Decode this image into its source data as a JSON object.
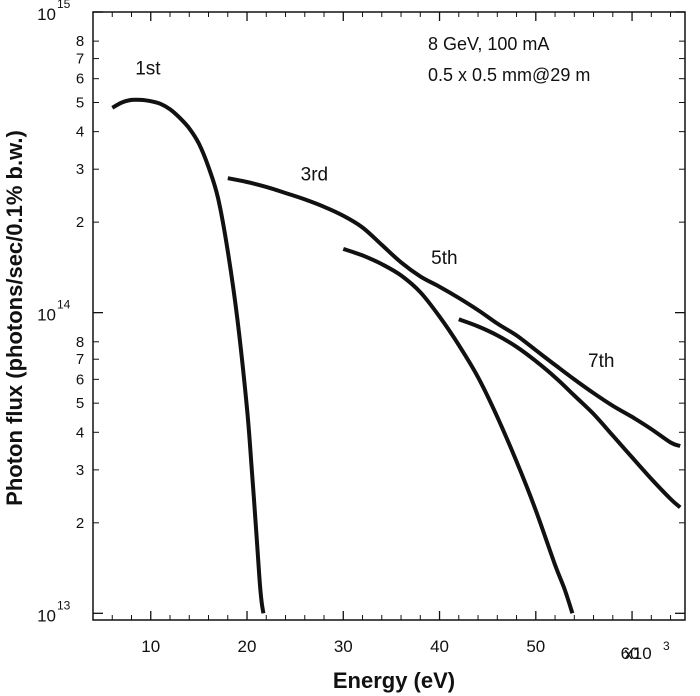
{
  "chart_data": {
    "type": "line",
    "xlabel": "Energy (eV)",
    "ylabel": "Photon flux (photons/sec/0.1% b.w.)",
    "x_multiplier_label": "x10",
    "x_multiplier_exp": "3",
    "xlim": [
      4000,
      65500
    ],
    "ylim": [
      9500000000000.0,
      1000000000000000.0
    ],
    "yscale": "log",
    "x_ticks": [
      10000,
      20000,
      30000,
      40000,
      50000,
      60000
    ],
    "x_tick_labels": [
      "10",
      "20",
      "30",
      "40",
      "50",
      "60"
    ],
    "y_major_ticks": [
      {
        "value": 10000000000000.0,
        "base": "10",
        "exp": "13"
      },
      {
        "value": 100000000000000.0,
        "base": "10",
        "exp": "14"
      },
      {
        "value": 1000000000000000.0,
        "base": "10",
        "exp": "15"
      }
    ],
    "y_minor_ticks": [
      {
        "value": 20000000000000.0,
        "label": "2"
      },
      {
        "value": 30000000000000.0,
        "label": "3"
      },
      {
        "value": 40000000000000.0,
        "label": "4"
      },
      {
        "value": 50000000000000.0,
        "label": "5"
      },
      {
        "value": 60000000000000.0,
        "label": "6"
      },
      {
        "value": 70000000000000.0,
        "label": "7"
      },
      {
        "value": 80000000000000.0,
        "label": "8"
      },
      {
        "value": 200000000000000.0,
        "label": "2"
      },
      {
        "value": 300000000000000.0,
        "label": "3"
      },
      {
        "value": 400000000000000.0,
        "label": "4"
      },
      {
        "value": 500000000000000.0,
        "label": "5"
      },
      {
        "value": 600000000000000.0,
        "label": "6"
      },
      {
        "value": 700000000000000.0,
        "label": "7"
      },
      {
        "value": 800000000000000.0,
        "label": "8"
      }
    ],
    "annotations": [
      "8 GeV, 100 mA",
      "0.5 x 0.5 mm@29 m"
    ],
    "series": [
      {
        "name": "1st",
        "label_at": [
          9700,
          620000000000000.0
        ],
        "x": [
          6000,
          7000,
          8000,
          9000,
          10000,
          11000,
          12000,
          13000,
          14000,
          15000,
          16000,
          17000,
          18000,
          19000,
          20000,
          20500,
          21000,
          21300,
          21500,
          21700
        ],
        "y": [
          480000000000000.0,
          500000000000000.0,
          510000000000000.0,
          510000000000000.0,
          505000000000000.0,
          495000000000000.0,
          475000000000000.0,
          445000000000000.0,
          410000000000000.0,
          365000000000000.0,
          305000000000000.0,
          240000000000000.0,
          160000000000000.0,
          95000000000000.0,
          48000000000000.0,
          30000000000000.0,
          18000000000000.0,
          13000000000000.0,
          11000000000000.0,
          10000000000000.0
        ]
      },
      {
        "name": "3rd",
        "label_at": [
          27000,
          275000000000000.0
        ],
        "x": [
          18000,
          20000,
          22000,
          24000,
          26000,
          28000,
          30000,
          32000,
          34000,
          36000,
          38000,
          40000,
          42000,
          44000,
          46000,
          48000,
          50000,
          52000,
          54000,
          56000,
          58000,
          60000,
          62000,
          64000,
          65000
        ],
        "y": [
          280000000000000.0,
          272000000000000.0,
          262000000000000.0,
          250000000000000.0,
          238000000000000.0,
          225000000000000.0,
          210000000000000.0,
          192000000000000.0,
          168000000000000.0,
          147000000000000.0,
          132000000000000.0,
          122000000000000.0,
          112000000000000.0,
          102000000000000.0,
          92000000000000.0,
          84000000000000.0,
          75000000000000.0,
          67000000000000.0,
          60000000000000.0,
          54000000000000.0,
          49000000000000.0,
          45000000000000.0,
          41000000000000.0,
          37000000000000.0,
          36000000000000.0
        ]
      },
      {
        "name": "5th",
        "label_at": [
          40500,
          145000000000000.0
        ],
        "x": [
          30000,
          32000,
          34000,
          36000,
          38000,
          40000,
          42000,
          44000,
          46000,
          48000,
          50000,
          52000,
          53000,
          53800
        ],
        "y": [
          163000000000000.0,
          155000000000000.0,
          145000000000000.0,
          133000000000000.0,
          117000000000000.0,
          97000000000000.0,
          78000000000000.0,
          61000000000000.0,
          45000000000000.0,
          32000000000000.0,
          22000000000000.0,
          14500000000000.0,
          12000000000000.0,
          10000000000000.0
        ]
      },
      {
        "name": "7th",
        "label_at": [
          56800,
          66000000000000.0
        ],
        "x": [
          42000,
          44000,
          46000,
          48000,
          50000,
          52000,
          54000,
          56000,
          58000,
          60000,
          62000,
          64000,
          65000
        ],
        "y": [
          95000000000000.0,
          90000000000000.0,
          84000000000000.0,
          77000000000000.0,
          69000000000000.0,
          61000000000000.0,
          53000000000000.0,
          46000000000000.0,
          39000000000000.0,
          33000000000000.0,
          28000000000000.0,
          24000000000000.0,
          22500000000000.0
        ]
      }
    ]
  }
}
